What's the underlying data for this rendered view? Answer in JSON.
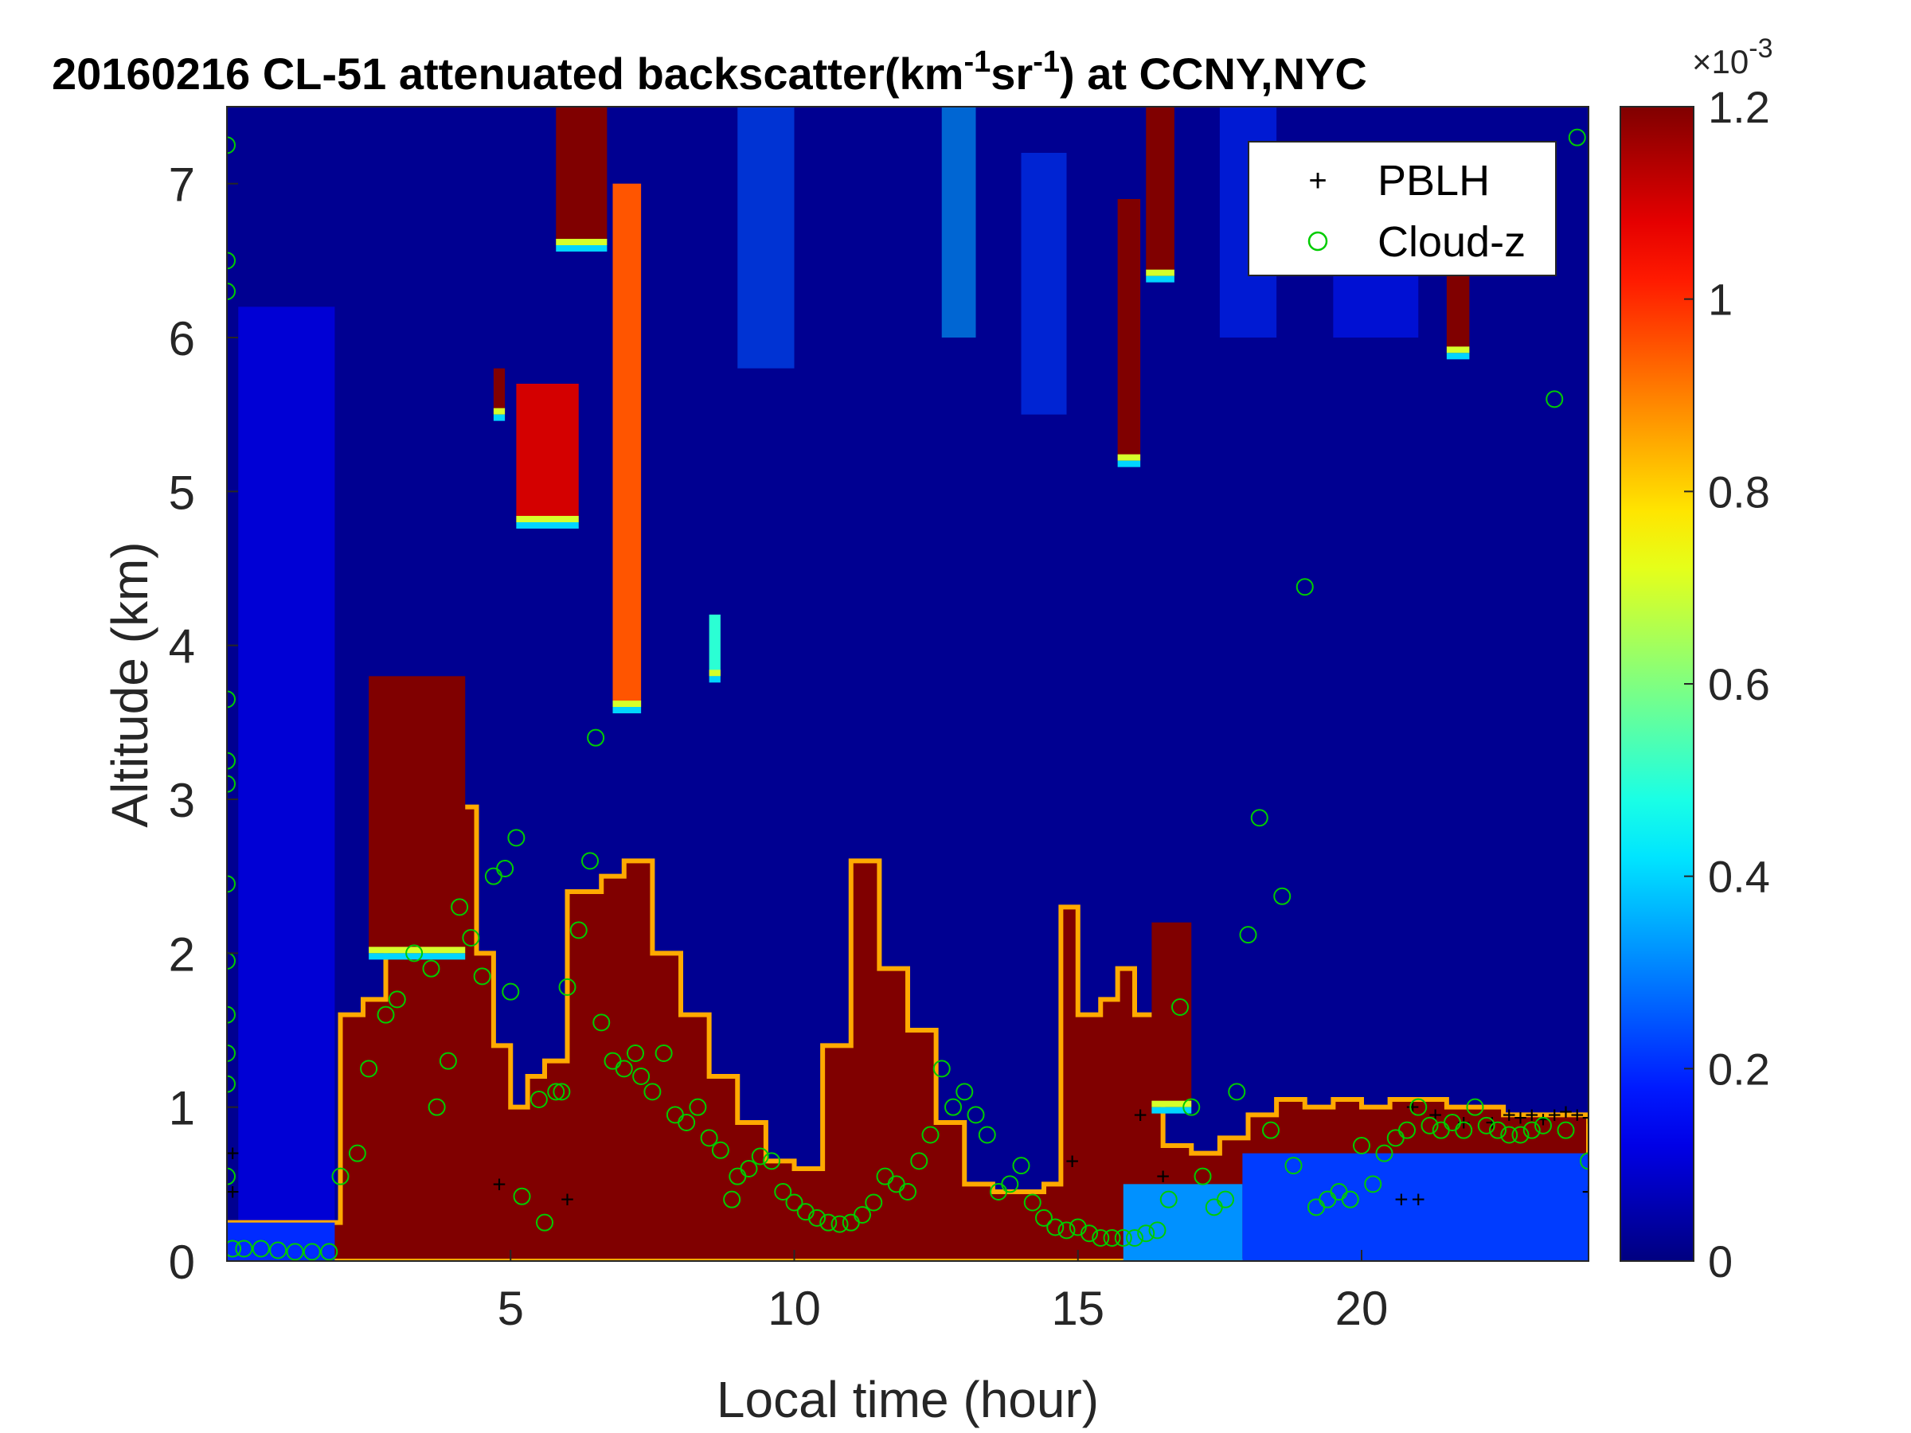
{
  "chart_data": {
    "type": "heatmap",
    "title": {
      "prefix": "20160216  CL-51 attenuated backscatter(km",
      "sup1": "-1",
      "mid": "sr",
      "sup2": "-1",
      "suffix": ") at CCNY,NYC"
    },
    "xlabel": "Local time (hour)",
    "ylabel": "Altitude (km)",
    "xlim": [
      0,
      24
    ],
    "ylim": [
      0,
      7.5
    ],
    "xticks": [
      5,
      10,
      15,
      20
    ],
    "yticks": [
      0,
      1,
      2,
      3,
      4,
      5,
      6,
      7
    ],
    "colorbar": {
      "colormap": "jet",
      "clim": [
        0,
        1.2
      ],
      "ticks": [
        0,
        0.2,
        0.4,
        0.6,
        0.8,
        1,
        1.2
      ],
      "tick_labels": [
        "0",
        "0.2",
        "0.4",
        "0.6",
        "0.8",
        "1",
        "1.2"
      ],
      "exponent_label": "×10",
      "exponent": "-3"
    },
    "legend": {
      "position": "top-right",
      "entries": [
        {
          "label": "PBLH",
          "marker": "+",
          "color": "#000000"
        },
        {
          "label": "Cloud-z",
          "marker": "o",
          "color": "#00cc00"
        }
      ]
    },
    "background_value": 0.02,
    "aerosol_layer_top": [
      [
        0.0,
        0.25
      ],
      [
        1.5,
        0.25
      ],
      [
        1.9,
        0.25
      ],
      [
        2.0,
        1.6
      ],
      [
        2.4,
        1.7
      ],
      [
        2.8,
        2.3
      ],
      [
        3.2,
        2.7
      ],
      [
        3.6,
        2.95
      ],
      [
        4.2,
        2.95
      ],
      [
        4.4,
        2.0
      ],
      [
        4.7,
        1.4
      ],
      [
        5.0,
        1.0
      ],
      [
        5.3,
        1.2
      ],
      [
        5.6,
        1.3
      ],
      [
        6.0,
        2.4
      ],
      [
        6.6,
        2.5
      ],
      [
        7.0,
        2.6
      ],
      [
        7.5,
        2.0
      ],
      [
        8.0,
        1.6
      ],
      [
        8.5,
        1.2
      ],
      [
        9.0,
        0.9
      ],
      [
        9.5,
        0.65
      ],
      [
        10.0,
        0.6
      ],
      [
        10.5,
        1.4
      ],
      [
        11.0,
        2.6
      ],
      [
        11.5,
        1.9
      ],
      [
        12.0,
        1.5
      ],
      [
        12.5,
        0.9
      ],
      [
        13.0,
        0.5
      ],
      [
        13.5,
        0.45
      ],
      [
        14.0,
        0.45
      ],
      [
        14.4,
        0.5
      ],
      [
        14.7,
        2.3
      ],
      [
        15.0,
        1.6
      ],
      [
        15.4,
        1.7
      ],
      [
        15.7,
        1.9
      ],
      [
        16.0,
        1.6
      ],
      [
        16.5,
        0.75
      ],
      [
        17.0,
        0.7
      ],
      [
        17.5,
        0.8
      ],
      [
        18.0,
        0.95
      ],
      [
        18.5,
        1.05
      ],
      [
        19.0,
        1.0
      ],
      [
        19.5,
        1.05
      ],
      [
        20.0,
        1.0
      ],
      [
        20.5,
        1.05
      ],
      [
        21.0,
        1.05
      ],
      [
        21.5,
        1.0
      ],
      [
        22.0,
        1.0
      ],
      [
        22.5,
        0.95
      ],
      [
        23.0,
        0.95
      ],
      [
        24.0,
        0.95
      ]
    ],
    "aerosol_layer_value": 1.2,
    "low_signal_segments": [
      {
        "x": [
          0.0,
          1.9
        ],
        "top": 0.25,
        "value": 0.2
      },
      {
        "x": [
          15.8,
          17.9
        ],
        "top": 0.5,
        "value": 0.32
      },
      {
        "x": [
          17.9,
          24.0
        ],
        "top": 0.7,
        "value": 0.22
      }
    ],
    "smoke_plume": {
      "x": [
        0.2,
        1.9
      ],
      "top": 6.2,
      "value": 0.12
    },
    "cloud_columns": [
      {
        "x": [
          2.5,
          4.2
        ],
        "bottom": 2.0,
        "top": 3.8,
        "value": 1.2
      },
      {
        "x": [
          4.7,
          4.9
        ],
        "bottom": 5.5,
        "top": 5.8,
        "value": 1.2
      },
      {
        "x": [
          5.1,
          6.2
        ],
        "bottom": 4.8,
        "top": 5.7,
        "value": 1.1
      },
      {
        "x": [
          5.8,
          6.7
        ],
        "bottom": 6.6,
        "top": 7.5,
        "value": 1.2
      },
      {
        "x": [
          6.8,
          7.3
        ],
        "bottom": 3.6,
        "top": 7.0,
        "value": 0.95
      },
      {
        "x": [
          8.5,
          8.7
        ],
        "bottom": 3.8,
        "top": 4.2,
        "value": 0.5
      },
      {
        "x": [
          15.7,
          16.1
        ],
        "bottom": 5.2,
        "top": 6.9,
        "value": 1.2
      },
      {
        "x": [
          16.2,
          16.7
        ],
        "bottom": 6.4,
        "top": 7.5,
        "value": 1.2
      },
      {
        "x": [
          21.5,
          21.9
        ],
        "bottom": 5.9,
        "top": 6.6,
        "value": 1.2
      },
      {
        "x": [
          16.3,
          17.0
        ],
        "bottom": 1.0,
        "top": 2.2,
        "value": 1.2
      }
    ],
    "cirrus_streaks": [
      {
        "x": [
          9.0,
          10.0
        ],
        "bottom": 5.8,
        "top": 7.5,
        "value": 0.25
      },
      {
        "x": [
          12.6,
          13.2
        ],
        "bottom": 6.0,
        "top": 7.5,
        "value": 0.35
      },
      {
        "x": [
          14.0,
          14.8
        ],
        "bottom": 5.5,
        "top": 7.2,
        "value": 0.22
      },
      {
        "x": [
          17.5,
          18.5
        ],
        "bottom": 6.0,
        "top": 7.5,
        "value": 0.2
      },
      {
        "x": [
          19.5,
          21.0
        ],
        "bottom": 6.0,
        "top": 7.2,
        "value": 0.18
      }
    ],
    "pblh_points": [
      [
        0.1,
        0.45
      ],
      [
        0.1,
        0.7
      ],
      [
        4.8,
        0.5
      ],
      [
        6.0,
        0.4
      ],
      [
        14.9,
        0.65
      ],
      [
        16.1,
        0.95
      ],
      [
        16.5,
        0.55
      ],
      [
        20.7,
        0.4
      ],
      [
        21.0,
        0.4
      ],
      [
        20.9,
        1.0
      ],
      [
        21.3,
        0.95
      ],
      [
        21.8,
        0.9
      ],
      [
        22.3,
        0.9
      ],
      [
        22.6,
        0.95
      ],
      [
        22.8,
        0.93
      ],
      [
        23.0,
        0.95
      ],
      [
        23.2,
        0.92
      ],
      [
        23.4,
        0.95
      ],
      [
        23.6,
        0.97
      ],
      [
        23.8,
        0.95
      ],
      [
        24.0,
        0.93
      ],
      [
        24.0,
        0.45
      ]
    ],
    "cloud_z_points": [
      [
        0.0,
        7.25
      ],
      [
        0.0,
        6.5
      ],
      [
        0.0,
        6.3
      ],
      [
        0.0,
        3.65
      ],
      [
        0.0,
        3.25
      ],
      [
        0.0,
        3.1
      ],
      [
        0.0,
        2.45
      ],
      [
        0.0,
        1.95
      ],
      [
        0.0,
        1.6
      ],
      [
        0.0,
        1.35
      ],
      [
        0.0,
        1.15
      ],
      [
        0.0,
        0.55
      ],
      [
        0.1,
        0.08
      ],
      [
        0.3,
        0.08
      ],
      [
        0.6,
        0.08
      ],
      [
        0.9,
        0.07
      ],
      [
        1.2,
        0.06
      ],
      [
        1.5,
        0.06
      ],
      [
        1.8,
        0.06
      ],
      [
        2.0,
        0.55
      ],
      [
        2.3,
        0.7
      ],
      [
        2.5,
        1.25
      ],
      [
        2.8,
        1.6
      ],
      [
        3.0,
        1.7
      ],
      [
        3.3,
        2.0
      ],
      [
        3.6,
        1.9
      ],
      [
        3.9,
        1.3
      ],
      [
        3.7,
        1.0
      ],
      [
        4.1,
        2.3
      ],
      [
        4.3,
        2.1
      ],
      [
        4.5,
        1.85
      ],
      [
        4.7,
        2.5
      ],
      [
        4.9,
        2.55
      ],
      [
        5.1,
        2.75
      ],
      [
        5.0,
        1.75
      ],
      [
        5.2,
        0.42
      ],
      [
        5.5,
        1.05
      ],
      [
        5.6,
        0.25
      ],
      [
        5.8,
        1.1
      ],
      [
        5.9,
        1.1
      ],
      [
        6.0,
        1.78
      ],
      [
        6.2,
        2.15
      ],
      [
        6.4,
        2.6
      ],
      [
        6.5,
        3.4
      ],
      [
        6.6,
        1.55
      ],
      [
        6.8,
        1.3
      ],
      [
        7.0,
        1.25
      ],
      [
        7.2,
        1.35
      ],
      [
        7.3,
        1.2
      ],
      [
        7.5,
        1.1
      ],
      [
        7.7,
        1.35
      ],
      [
        7.9,
        0.95
      ],
      [
        8.1,
        0.9
      ],
      [
        8.3,
        1.0
      ],
      [
        8.5,
        0.8
      ],
      [
        8.7,
        0.72
      ],
      [
        8.9,
        0.4
      ],
      [
        9.0,
        0.55
      ],
      [
        9.2,
        0.6
      ],
      [
        9.4,
        0.68
      ],
      [
        9.6,
        0.65
      ],
      [
        9.8,
        0.45
      ],
      [
        10.0,
        0.38
      ],
      [
        10.2,
        0.32
      ],
      [
        10.4,
        0.28
      ],
      [
        10.6,
        0.25
      ],
      [
        10.8,
        0.24
      ],
      [
        11.0,
        0.25
      ],
      [
        11.2,
        0.3
      ],
      [
        11.4,
        0.38
      ],
      [
        11.6,
        0.55
      ],
      [
        11.8,
        0.5
      ],
      [
        12.0,
        0.45
      ],
      [
        12.2,
        0.65
      ],
      [
        12.4,
        0.82
      ],
      [
        12.6,
        1.25
      ],
      [
        12.8,
        1.0
      ],
      [
        13.0,
        1.1
      ],
      [
        13.2,
        0.95
      ],
      [
        13.4,
        0.82
      ],
      [
        13.6,
        0.45
      ],
      [
        13.8,
        0.5
      ],
      [
        14.0,
        0.62
      ],
      [
        14.2,
        0.38
      ],
      [
        14.4,
        0.28
      ],
      [
        14.6,
        0.22
      ],
      [
        14.8,
        0.2
      ],
      [
        15.0,
        0.22
      ],
      [
        15.2,
        0.18
      ],
      [
        15.4,
        0.15
      ],
      [
        15.6,
        0.15
      ],
      [
        15.8,
        0.15
      ],
      [
        16.0,
        0.15
      ],
      [
        16.2,
        0.18
      ],
      [
        16.4,
        0.2
      ],
      [
        16.6,
        0.4
      ],
      [
        16.8,
        1.65
      ],
      [
        17.0,
        1.0
      ],
      [
        17.2,
        0.55
      ],
      [
        17.4,
        0.35
      ],
      [
        17.6,
        0.4
      ],
      [
        17.8,
        1.1
      ],
      [
        18.0,
        2.12
      ],
      [
        18.2,
        2.88
      ],
      [
        18.4,
        0.85
      ],
      [
        18.6,
        2.37
      ],
      [
        18.8,
        0.62
      ],
      [
        19.0,
        4.38
      ],
      [
        19.2,
        0.35
      ],
      [
        19.4,
        0.4
      ],
      [
        19.6,
        0.45
      ],
      [
        19.8,
        0.4
      ],
      [
        20.0,
        0.75
      ],
      [
        20.2,
        0.5
      ],
      [
        20.4,
        0.7
      ],
      [
        20.6,
        0.8
      ],
      [
        20.8,
        0.85
      ],
      [
        21.0,
        1.0
      ],
      [
        21.2,
        0.88
      ],
      [
        21.4,
        0.85
      ],
      [
        21.6,
        0.9
      ],
      [
        21.8,
        0.85
      ],
      [
        22.0,
        1.0
      ],
      [
        22.2,
        0.88
      ],
      [
        22.4,
        0.85
      ],
      [
        22.6,
        0.82
      ],
      [
        22.8,
        0.82
      ],
      [
        23.0,
        0.85
      ],
      [
        23.2,
        0.88
      ],
      [
        23.4,
        5.6
      ],
      [
        23.6,
        0.85
      ],
      [
        23.8,
        7.3
      ],
      [
        24.0,
        0.65
      ]
    ]
  }
}
